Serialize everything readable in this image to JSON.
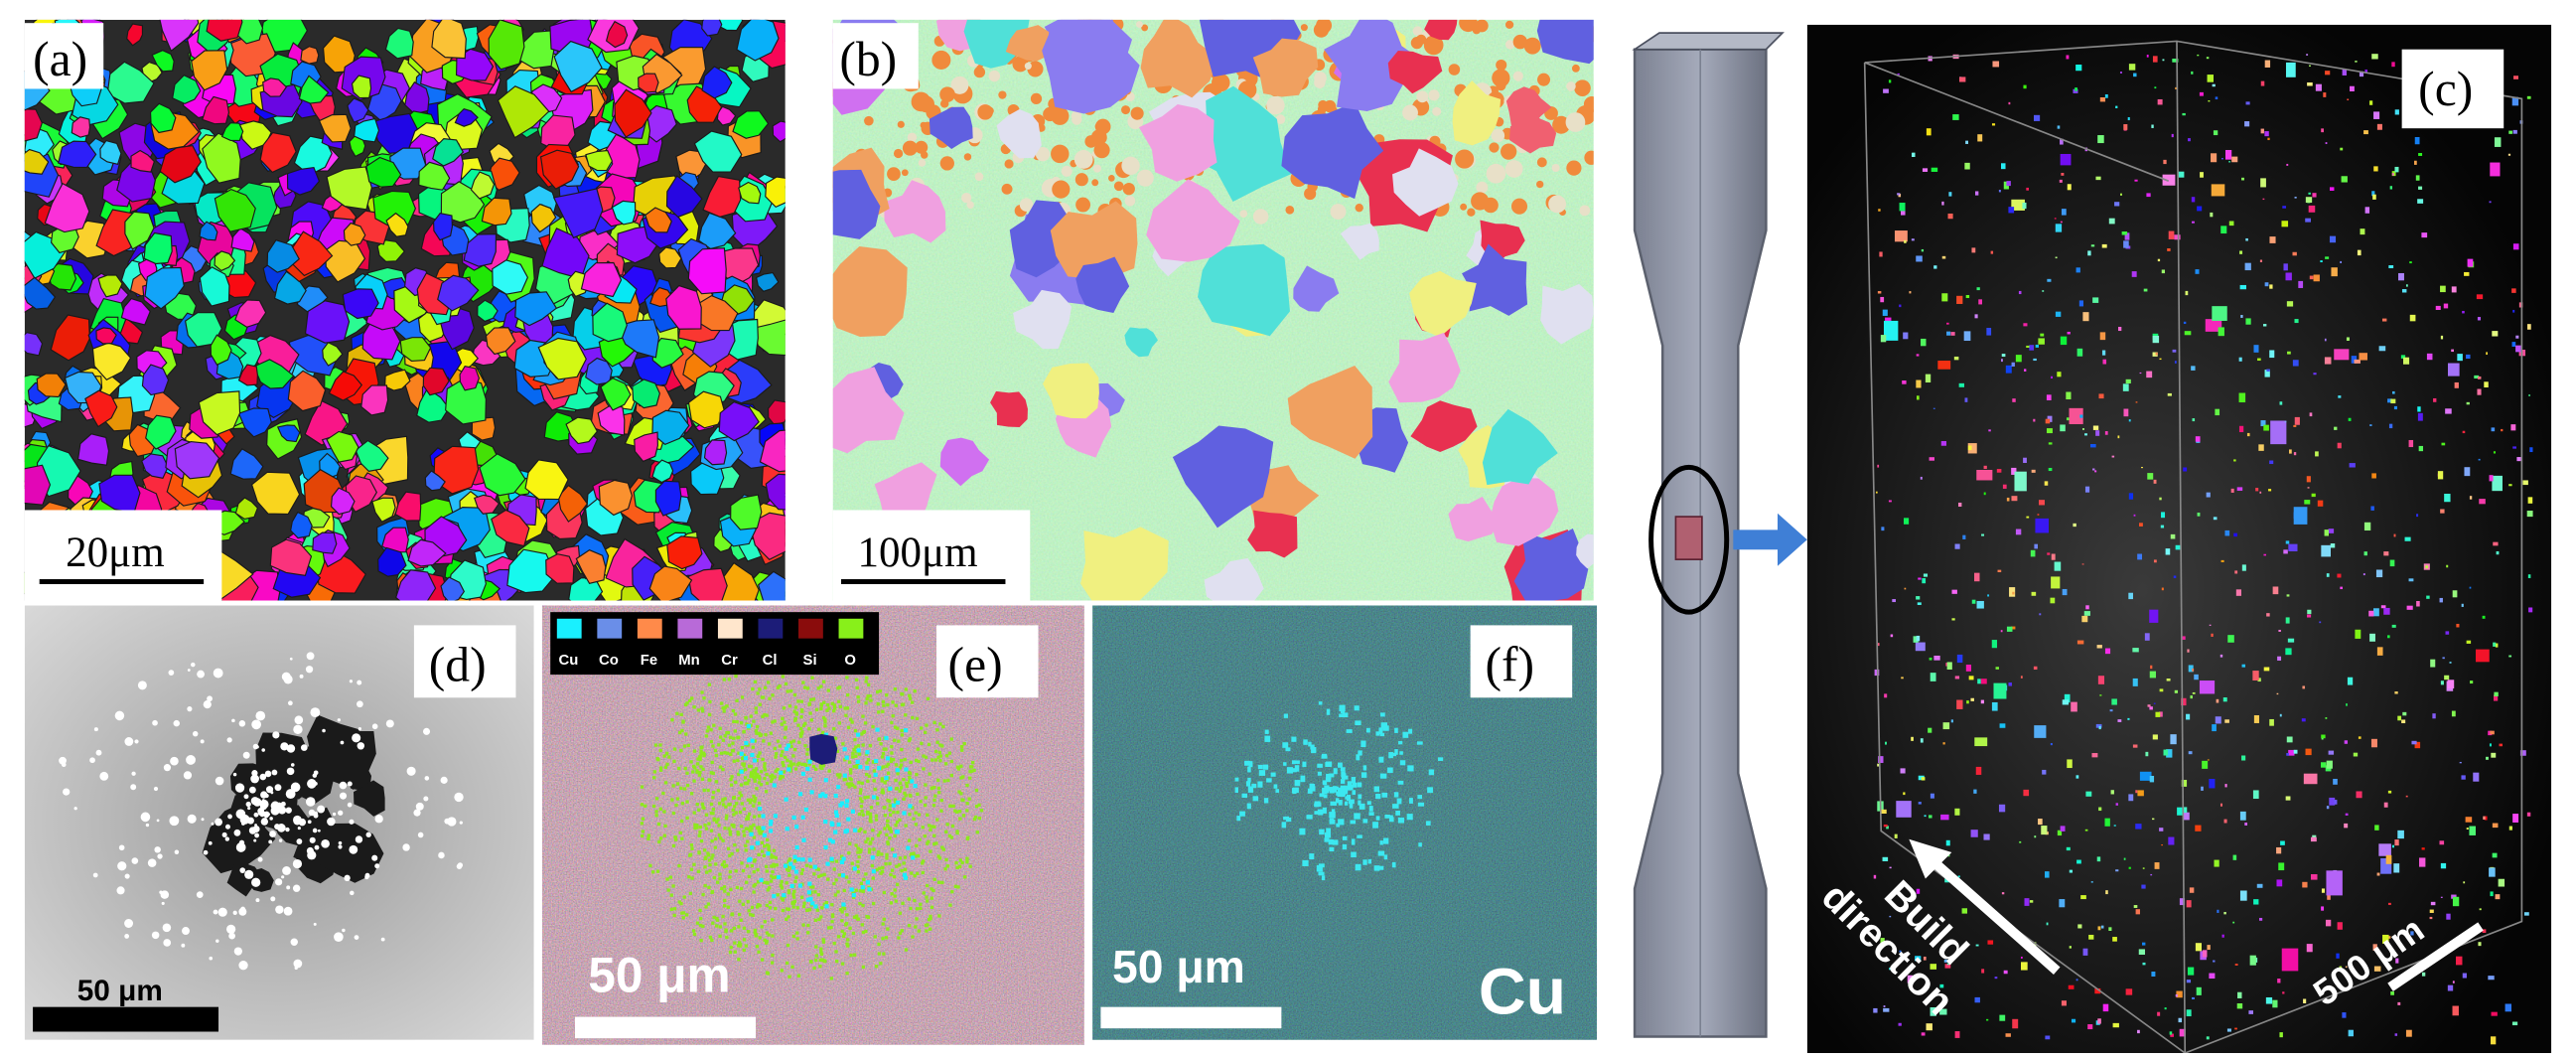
{
  "panels": [
    {
      "label": "(a)",
      "scale_bar": "20μm"
    },
    {
      "label": "(b)",
      "scale_bar": "100μm"
    },
    {
      "label": "(c)",
      "scale_bar": "500 μm",
      "arrow_text": [
        "Build",
        "direction"
      ]
    },
    {
      "label": "(d)",
      "scale_bar": "50 μm"
    },
    {
      "label": "(e)",
      "scale_bar": "50 μm"
    },
    {
      "label": "(f)",
      "scale_bar": "50 μm",
      "element": "Cu"
    }
  ],
  "legend": [
    {
      "name": "Cu",
      "color": "#19f0ff"
    },
    {
      "name": "Co",
      "color": "#6a8ee8"
    },
    {
      "name": "Fe",
      "color": "#ff8a4a"
    },
    {
      "name": "Mn",
      "color": "#b86ad8"
    },
    {
      "name": "Cr",
      "color": "#ffe6cc"
    },
    {
      "name": "Cl",
      "color": "#1c1c78"
    },
    {
      "name": "Si",
      "color": "#8a0c0c"
    },
    {
      "name": "O",
      "color": "#88f01a"
    }
  ]
}
